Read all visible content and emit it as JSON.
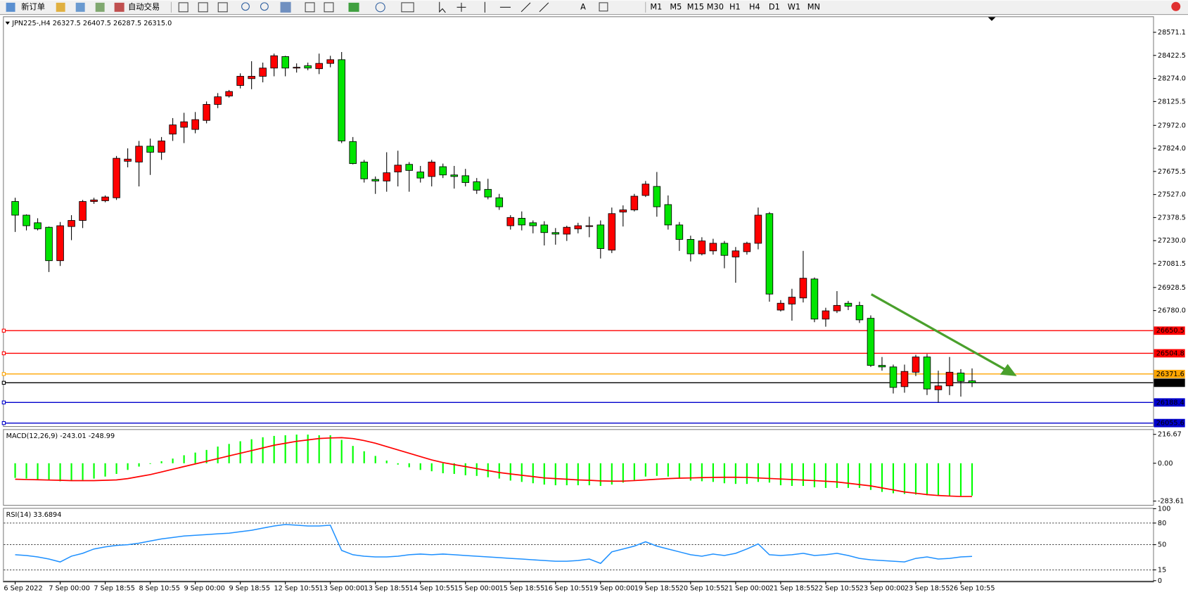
{
  "toolbar": {
    "new_order": "新订单",
    "auto_trading": "自动交易",
    "timeframes": [
      "M1",
      "M5",
      "M15",
      "M30",
      "H1",
      "H4",
      "D1",
      "W1",
      "MN"
    ]
  },
  "chart_data": [
    {
      "type": "candlestick",
      "title": "JPN225-,H4  26327.5 26407.5 26287.5 26315.0",
      "up_color": "#ff0000",
      "down_color": "#00e400",
      "categories": [
        "6 Sep 2022",
        null,
        null,
        null,
        "7 Sep 00:00",
        null,
        null,
        null,
        "7 Sep 18:55",
        null,
        null,
        null,
        "8 Sep 10:55",
        null,
        null,
        null,
        "9 Sep 00:00",
        null,
        null,
        null,
        "9 Sep 18:55",
        null,
        null,
        null,
        "12 Sep 10:55",
        null,
        null,
        null,
        "13 Sep 00:00",
        null,
        null,
        null,
        "13 Sep 18:55",
        null,
        null,
        null,
        "14 Sep 10:55",
        null,
        null,
        null,
        "15 Sep 00:00",
        null,
        null,
        null,
        "15 Sep 18:55",
        null,
        null,
        null,
        "16 Sep 10:55",
        null,
        null,
        null,
        "19 Sep 00:00",
        null,
        null,
        null,
        "19 Sep 18:55",
        null,
        null,
        null,
        "20 Sep 10:55",
        null,
        null,
        null,
        "21 Sep 00:00",
        null,
        null,
        null,
        "21 Sep 18:55",
        null,
        null,
        null,
        "22 Sep 10:55",
        null,
        null,
        null,
        "23 Sep 00:00",
        null,
        null,
        null,
        "23 Sep 18:55",
        null,
        null,
        null,
        "26 Sep 10:55",
        null
      ],
      "open": [
        27482,
        27394,
        27345,
        27316,
        27101,
        27321,
        27360,
        27482,
        27487,
        27506,
        27741,
        27736,
        27838,
        27799,
        27916,
        27960,
        27946,
        28004,
        28107,
        28161,
        28229,
        28273,
        28288,
        28341,
        28415,
        28341,
        28356,
        28337,
        28371,
        28395,
        27868,
        27736,
        27624,
        27614,
        27672,
        27721,
        27672,
        27643,
        27706,
        27653,
        27648,
        27609,
        27560,
        27506,
        27326,
        27374,
        27345,
        27331,
        27282,
        27272,
        27306,
        27321,
        27331,
        27169,
        27414,
        27428,
        27521,
        27579,
        27462,
        27331,
        27238,
        27145,
        27164,
        27213,
        27125,
        27159,
        27213,
        27404,
        26783,
        26822,
        26861,
        26983,
        26725,
        26778,
        26827,
        26813,
        26730,
        26427,
        26417,
        26290,
        26383,
        26481,
        26270,
        26295,
        26378,
        26327.5
      ],
      "high": [
        27506,
        27399,
        27374,
        27321,
        27350,
        27394,
        27492,
        27506,
        27521,
        27775,
        27824,
        27872,
        27887,
        27897,
        28019,
        28053,
        28058,
        28126,
        28180,
        28200,
        28307,
        28385,
        28376,
        28434,
        28420,
        28371,
        28376,
        28434,
        28420,
        28444,
        27897,
        27750,
        27643,
        27799,
        27809,
        27736,
        27711,
        27750,
        27726,
        27711,
        27692,
        27633,
        27628,
        27531,
        27394,
        27418,
        27360,
        27355,
        27311,
        27326,
        27345,
        27384,
        27360,
        27443,
        27457,
        27531,
        27614,
        27672,
        27521,
        27350,
        27262,
        27252,
        27242,
        27228,
        27189,
        27223,
        27443,
        27414,
        26847,
        26920,
        27164,
        26993,
        26798,
        26905,
        26842,
        26837,
        26749,
        26481,
        26432,
        26432,
        26495,
        26500,
        26393,
        26481,
        26403,
        26407.5
      ],
      "low": [
        27286,
        27296,
        27296,
        27028,
        27067,
        27233,
        27311,
        27467,
        27477,
        27492,
        27702,
        27579,
        27653,
        27750,
        27872,
        27858,
        27921,
        27985,
        28083,
        28151,
        28210,
        28205,
        28249,
        28288,
        28288,
        28312,
        28327,
        28302,
        28346,
        27858,
        27721,
        27604,
        27531,
        27545,
        27579,
        27545,
        27604,
        27579,
        27633,
        27565,
        27579,
        27531,
        27496,
        27428,
        27301,
        27296,
        27277,
        27199,
        27204,
        27228,
        27277,
        27252,
        27115,
        27150,
        27321,
        27418,
        27511,
        27384,
        27301,
        27164,
        27096,
        27135,
        27140,
        27052,
        26959,
        27140,
        27174,
        26837,
        26774,
        26715,
        26832,
        26705,
        26676,
        26764,
        26783,
        26700,
        26417,
        26393,
        26246,
        26251,
        26358,
        26236,
        26188,
        26236,
        26226,
        26287.5
      ],
      "close": [
        27394,
        27326,
        27306,
        27101,
        27326,
        27360,
        27482,
        27492,
        27511,
        27760,
        27755,
        27838,
        27799,
        27872,
        27975,
        27995,
        28009,
        28107,
        28156,
        28190,
        28288,
        28288,
        28341,
        28420,
        28341,
        28346,
        28341,
        28371,
        28395,
        27872,
        27726,
        27628,
        27614,
        27667,
        27716,
        27682,
        27633,
        27736,
        27653,
        27643,
        27604,
        27555,
        27511,
        27448,
        27379,
        27331,
        27326,
        27282,
        27272,
        27316,
        27326,
        27326,
        27179,
        27404,
        27428,
        27516,
        27594,
        27448,
        27331,
        27238,
        27145,
        27228,
        27213,
        27135,
        27164,
        27213,
        27394,
        26886,
        26827,
        26866,
        26988,
        26725,
        26778,
        26813,
        26808,
        26720,
        26427,
        26417,
        26285,
        26388,
        26481,
        26275,
        26295,
        26383,
        26324,
        26315
      ],
      "ylim": [
        26031,
        28669
      ],
      "yticks": [
        28571.1,
        28422.5,
        {
          "value": 28274,
          "label": "28274.0"
        },
        28125.5,
        {
          "value": 27972,
          "label": "27972.0"
        },
        {
          "value": 27824,
          "label": "27824.0"
        },
        27675.5,
        {
          "value": 27527,
          "label": "27527.0"
        },
        27378.5,
        {
          "value": 27230,
          "label": "27230.0"
        },
        27081.5,
        26928.5,
        {
          "value": 26780,
          "label": "26780.0"
        }
      ],
      "levels": [
        {
          "value": 26650.5,
          "color": "#ff0000"
        },
        {
          "value": 26504.8,
          "color": "#ff0000"
        },
        {
          "value": 26371.6,
          "color": "#ffa500"
        },
        {
          "value": 26315,
          "label": "26315.0",
          "color": "#000000"
        },
        {
          "value": 26188.4,
          "color": "#0000cd"
        },
        {
          "value": 26055.6,
          "color": "#0000cd"
        }
      ]
    },
    {
      "type": "macd",
      "title": "MACD(12,26,9) -243.01 -248.99",
      "histogram": {
        "color": "#00ff00",
        "values": [
          -110,
          -115,
          -120,
          -125,
          -135,
          -130,
          -125,
          -115,
          -100,
          -80,
          -50,
          -25,
          -5,
          15,
          35,
          60,
          80,
          100,
          125,
          145,
          165,
          180,
          195,
          205,
          210,
          215,
          215,
          210,
          210,
          175,
          130,
          90,
          55,
          20,
          -10,
          -30,
          -50,
          -60,
          -75,
          -80,
          -90,
          -95,
          -105,
          -115,
          -130,
          -140,
          -150,
          -160,
          -165,
          -165,
          -165,
          -165,
          -170,
          -160,
          -145,
          -125,
          -100,
          -95,
          -100,
          -115,
          -130,
          -135,
          -140,
          -150,
          -155,
          -155,
          -140,
          -145,
          -165,
          -170,
          -170,
          -180,
          -185,
          -185,
          -185,
          -185,
          -200,
          -215,
          -225,
          -230,
          -235,
          -240,
          -245,
          -245,
          -245,
          -243.01
        ]
      },
      "signal": {
        "color": "#ff0000",
        "values": [
          -120,
          -122,
          -124,
          -126,
          -128,
          -130,
          -130,
          -130,
          -128,
          -125,
          -115,
          -100,
          -85,
          -65,
          -45,
          -25,
          -5,
          15,
          35,
          55,
          75,
          95,
          115,
          135,
          150,
          165,
          175,
          185,
          190,
          192,
          185,
          170,
          150,
          125,
          100,
          75,
          50,
          25,
          5,
          -10,
          -25,
          -40,
          -55,
          -70,
          -80,
          -90,
          -100,
          -110,
          -115,
          -120,
          -125,
          -128,
          -132,
          -134,
          -134,
          -130,
          -125,
          -120,
          -115,
          -112,
          -110,
          -108,
          -106,
          -105,
          -105,
          -106,
          -110,
          -114,
          -118,
          -122,
          -126,
          -130,
          -135,
          -140,
          -150,
          -160,
          -170,
          -185,
          -200,
          -215,
          -225,
          -235,
          -242,
          -246,
          -249,
          -248.99
        ]
      },
      "ylim": [
        -318,
        250
      ],
      "yticks": [
        216.67,
        {
          "value": 0,
          "label": "0.00"
        },
        -283.61
      ]
    },
    {
      "type": "rsi",
      "title": "RSI(14) 33.6894",
      "color": "#1e90ff",
      "values": [
        36,
        35,
        33,
        30,
        26,
        34,
        38,
        44,
        47,
        49,
        50,
        52,
        55,
        58,
        60,
        62,
        63,
        64,
        65,
        66,
        68,
        70,
        73,
        76,
        78,
        77,
        76,
        76,
        77,
        42,
        36,
        34,
        33,
        33,
        34,
        36,
        37,
        36,
        37,
        36,
        35,
        34,
        33,
        32,
        31,
        30,
        29,
        28,
        27,
        27,
        28,
        30,
        24,
        40,
        44,
        48,
        54,
        48,
        44,
        40,
        36,
        34,
        37,
        35,
        38,
        44,
        51,
        36,
        35,
        36,
        38,
        35,
        36,
        38,
        35,
        31,
        29,
        28,
        27,
        26,
        31,
        33,
        30,
        31,
        33,
        33.6894
      ],
      "ylim": [
        -1,
        101
      ],
      "yticks": [
        100,
        80,
        50,
        15,
        0
      ],
      "levels": [
        80,
        50,
        15
      ]
    }
  ]
}
